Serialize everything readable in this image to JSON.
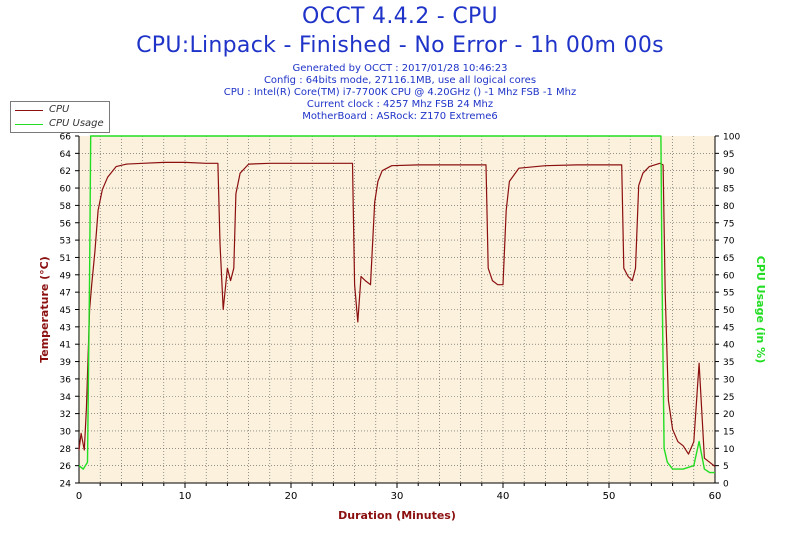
{
  "header": {
    "title": "OCCT 4.4.2 - CPU",
    "subtitle": "CPU:Linpack - Finished - No Error - 1h 00m 00s",
    "info_lines": [
      "Generated by OCCT : 2017/01/28 10:46:23",
      "Config : 64bits mode, 27116.1MB, use all logical cores",
      "CPU : Intel(R) Core(TM) i7-7700K CPU @ 4.20GHz () -1 Mhz FSB -1 Mhz",
      "Current clock : 4257 Mhz FSB 24 Mhz",
      "MotherBoard : ASRock: Z170 Extreme6"
    ]
  },
  "colors": {
    "title_blue": "#1f33c8",
    "plot_bg": "#fbf1dd",
    "cpu_temp": "#8b0f0f",
    "cpu_usage": "#22dd22",
    "grid": "#555555"
  },
  "chart_data": {
    "type": "line",
    "xlabel": "Duration (Minutes)",
    "ylabel_left": "Temperature (°C)",
    "ylabel_right": "CPU Usage (in %)",
    "xlim": [
      0,
      60
    ],
    "ylim_left": [
      24,
      66
    ],
    "ylim_right": [
      0,
      100
    ],
    "x_ticks": [
      "0",
      "10",
      "20",
      "30",
      "40",
      "50",
      "60"
    ],
    "y_left_ticks": [
      "24",
      "26",
      "28",
      "30",
      "32",
      "34",
      "36",
      "39",
      "41",
      "43",
      "45",
      "47",
      "49",
      "51",
      "53",
      "56",
      "58",
      "60",
      "62",
      "64",
      "66"
    ],
    "y_right_ticks": [
      "0",
      "5",
      "10",
      "15",
      "20",
      "25",
      "30",
      "35",
      "40",
      "45",
      "50",
      "55",
      "60",
      "65",
      "70",
      "75",
      "80",
      "85",
      "90",
      "95",
      "100"
    ],
    "grid": true,
    "legend_position": "top-left",
    "series": [
      {
        "name": "CPU",
        "axis": "left",
        "x": [
          0,
          0.2,
          0.5,
          0.7,
          1.0,
          1.2,
          1.5,
          1.8,
          2.2,
          2.7,
          3.5,
          4.5,
          6,
          8,
          10,
          12,
          13.1,
          13.3,
          13.6,
          14.0,
          14.3,
          14.6,
          14.8,
          15.2,
          16,
          18,
          20,
          22,
          24,
          25.8,
          26.0,
          26.3,
          26.6,
          27.0,
          27.5,
          27.9,
          28.2,
          28.6,
          29.5,
          32,
          35,
          38.4,
          38.6,
          39.0,
          39.5,
          40.0,
          40.3,
          40.6,
          41.5,
          44,
          47,
          51.2,
          51.4,
          51.8,
          52.2,
          52.5,
          52.8,
          53.2,
          53.8,
          54.8,
          55.1,
          55.3,
          55.6,
          56.0,
          56.5,
          57.0,
          57.5,
          58.0,
          58.5,
          59.0,
          59.5,
          60.0
        ],
        "values": [
          28,
          30,
          28,
          33,
          45,
          48,
          52,
          57,
          59.5,
          61,
          62.3,
          62.6,
          62.7,
          62.8,
          62.8,
          62.7,
          62.7,
          53,
          45,
          50,
          48.5,
          50,
          59,
          61.5,
          62.6,
          62.7,
          62.7,
          62.7,
          62.7,
          62.7,
          48,
          43.5,
          49,
          48.5,
          48,
          58,
          60.5,
          61.8,
          62.4,
          62.5,
          62.5,
          62.5,
          50,
          48.5,
          48,
          48,
          57,
          60.5,
          62.1,
          62.4,
          62.5,
          62.5,
          50,
          49,
          48.5,
          50,
          60,
          61.5,
          62.3,
          62.7,
          62.5,
          47,
          34,
          30.5,
          29,
          28.5,
          27.5,
          29,
          38.5,
          27,
          26.5,
          26
        ]
      },
      {
        "name": "CPU Usage",
        "axis": "right",
        "x": [
          0,
          0.4,
          0.8,
          1.0,
          1.1,
          5,
          10,
          20,
          30,
          40,
          50,
          54.9,
          55.0,
          55.2,
          55.5,
          56.0,
          57.0,
          58.0,
          58.5,
          59.0,
          59.5,
          60.0
        ],
        "values": [
          5,
          4,
          6,
          60,
          100,
          100,
          100,
          100,
          100,
          100,
          100,
          100,
          60,
          10,
          6,
          4,
          4,
          5,
          12,
          4,
          3,
          3
        ]
      }
    ]
  }
}
